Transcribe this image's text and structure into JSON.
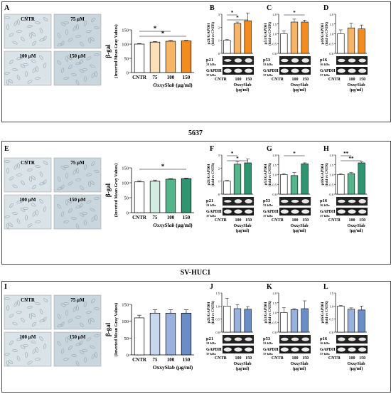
{
  "section_titles": [
    "5637",
    "SV-HUC1"
  ],
  "microscopy_labels": [
    "CNTR",
    "75 µM",
    "100 µM",
    "150 µM"
  ],
  "bgal_ylabel": "β-gal",
  "bgal_ylabel2": "(Inverted Mean Gray Values)",
  "xlabel_italic": "OxxySlab",
  "xlabel_unit": "(µg/ml)",
  "xlabel_plain": "OxxySlab (µg/ml)",
  "wb_xlabel": "OxxySlab",
  "wb_xlabel_unit": "(µg/ml)",
  "colors": {
    "cntr": "#ffffff",
    "set1": [
      "#fde0b9",
      "#f7b567",
      "#f28c20"
    ],
    "set2": [
      "#d1ece0",
      "#55b58a",
      "#2f9470"
    ],
    "set3": [
      "#c9d7ee",
      "#98b2dd",
      "#6a8cc7"
    ]
  },
  "chart_data": [
    {
      "panel": "A",
      "type": "bar",
      "categories": [
        "CNTR",
        "75",
        "100",
        "150"
      ],
      "values": [
        100,
        107,
        110,
        111
      ],
      "errors": [
        2,
        2,
        3,
        2
      ],
      "ylim": [
        0,
        150
      ],
      "yticks": [
        0,
        50,
        100,
        150
      ],
      "sig": [
        {
          "from": 0,
          "to": 2,
          "label": "*"
        },
        {
          "from": 0,
          "to": 3,
          "label": "*"
        }
      ]
    },
    {
      "panel": "B",
      "type": "bar",
      "ylabel": "p21/GAPDH",
      "ylabel2": "(fold vs CNTR)",
      "categories": [
        "CNTR",
        "100",
        "150"
      ],
      "values": [
        1.0,
        2.3,
        2.5
      ],
      "errors": [
        0.05,
        0.1,
        0.6
      ],
      "ylim": [
        0,
        3
      ],
      "yticks": [
        0,
        1,
        2,
        3
      ],
      "protein": "p21",
      "kda": "21 kDa",
      "gapdh": "GAPDH",
      "gapdh_kda": "37 kDa",
      "sig": [
        {
          "from": 0,
          "to": 1,
          "label": "*"
        },
        {
          "from": 0,
          "to": 2,
          "label": "*"
        }
      ]
    },
    {
      "panel": "C",
      "type": "bar",
      "ylabel": "p53/GAPDH",
      "ylabel2": "(fold vs CNTR)",
      "categories": [
        "CNTR",
        "100",
        "150"
      ],
      "values": [
        1.0,
        1.6,
        1.6
      ],
      "errors": [
        0.15,
        0.15,
        0.1
      ],
      "ylim": [
        0,
        2.0
      ],
      "yticks": [
        0.0,
        0.5,
        1.0,
        1.5,
        2.0
      ],
      "protein": "p53",
      "kda": "53 kDa",
      "gapdh": "GAPDH",
      "gapdh_kda": "37 kDa",
      "sig": [
        {
          "from": 0,
          "to": 2,
          "label": "*"
        }
      ]
    },
    {
      "panel": "D",
      "type": "bar",
      "ylabel": "p16/GAPDH",
      "ylabel2": "(fold vs CNTR)",
      "categories": [
        "CNTR",
        "100",
        "150"
      ],
      "values": [
        1.0,
        1.3,
        1.25
      ],
      "errors": [
        0.2,
        0.25,
        0.2
      ],
      "ylim": [
        0,
        2.0
      ],
      "yticks": [
        0.0,
        0.5,
        1.0,
        1.5,
        2.0
      ],
      "protein": "p16",
      "kda": "16 kDa",
      "gapdh": "GAPDH",
      "gapdh_kda": "37 kDa",
      "sig": []
    },
    {
      "panel": "E",
      "type": "bar",
      "categories": [
        "CNTR",
        "75",
        "100",
        "150"
      ],
      "values": [
        103,
        105,
        112,
        114
      ],
      "errors": [
        3,
        4,
        2,
        2
      ],
      "ylim": [
        0,
        150
      ],
      "yticks": [
        0,
        50,
        100,
        150
      ],
      "sig": [
        {
          "from": 0,
          "to": 3,
          "label": "*"
        }
      ]
    },
    {
      "panel": "F",
      "type": "bar",
      "ylabel": "p21/GAPDH",
      "ylabel2": "(fold vs CNTR)",
      "categories": [
        "CNTR",
        "100",
        "150"
      ],
      "values": [
        1.0,
        2.3,
        2.4
      ],
      "errors": [
        0.05,
        0.2,
        0.3
      ],
      "ylim": [
        0,
        3
      ],
      "yticks": [
        0,
        1,
        2,
        3
      ],
      "protein": "p21",
      "kda": "21 kDa",
      "gapdh": "GAPDH",
      "gapdh_kda": "37 kDa",
      "sig": [
        {
          "from": 0,
          "to": 1,
          "label": "*"
        },
        {
          "from": 0,
          "to": 2,
          "label": "*"
        }
      ]
    },
    {
      "panel": "G",
      "type": "bar",
      "ylabel": "p53/GAPDH",
      "ylabel2": "(fold vs CNTR)",
      "categories": [
        "CNTR",
        "100",
        "150"
      ],
      "values": [
        1.0,
        0.95,
        1.55
      ],
      "errors": [
        0.05,
        0.15,
        0.05
      ],
      "ylim": [
        0,
        2.0
      ],
      "yticks": [
        0.0,
        0.5,
        1.0,
        1.5,
        2.0
      ],
      "protein": "p53",
      "kda": "53 kDa",
      "gapdh": "GAPDH",
      "gapdh_kda": "37 kDa",
      "sig": [
        {
          "from": 0,
          "to": 2,
          "label": "*"
        }
      ]
    },
    {
      "panel": "H",
      "type": "bar",
      "ylabel": "p16/GAPDH",
      "ylabel2": "(fold vs CNTR)",
      "categories": [
        "CNTR",
        "100",
        "150"
      ],
      "values": [
        1.0,
        1.05,
        1.6
      ],
      "errors": [
        0.05,
        0.05,
        0.05
      ],
      "ylim": [
        0,
        2.0
      ],
      "yticks": [
        0.0,
        0.5,
        1.0,
        1.5,
        2.0
      ],
      "protein": "p16",
      "kda": "16 kDa",
      "gapdh": "GAPDH",
      "gapdh_kda": "37 kDa",
      "sig": [
        {
          "from": 0,
          "to": 1,
          "label": "**"
        },
        {
          "from": 0,
          "to": 2,
          "label": "**"
        }
      ]
    },
    {
      "panel": "I",
      "type": "bar",
      "categories": [
        "CNTR",
        "75",
        "100",
        "150"
      ],
      "values": [
        110,
        124,
        124,
        124
      ],
      "errors": [
        8,
        10,
        10,
        10
      ],
      "ylim": [
        0,
        150
      ],
      "yticks": [
        0,
        50,
        100,
        150
      ],
      "sig": []
    },
    {
      "panel": "J",
      "type": "bar",
      "ylabel": "p21/GAPDH",
      "ylabel2": "(fold vs CNTR)",
      "categories": [
        "CNTR",
        "100",
        "150"
      ],
      "values": [
        1.0,
        0.9,
        0.88
      ],
      "errors": [
        0.3,
        0.15,
        0.1
      ],
      "ylim": [
        0,
        1.5
      ],
      "yticks": [
        0.0,
        0.5,
        1.0,
        1.5
      ],
      "protein": "p21",
      "kda": "21 kDa",
      "gapdh": "GAPDH",
      "gapdh_kda": "37 kDa",
      "sig": []
    },
    {
      "panel": "K",
      "type": "bar",
      "ylabel": "p53/GAPDH",
      "ylabel2": "(fold vs CNTR)",
      "categories": [
        "CNTR",
        "100",
        "150"
      ],
      "values": [
        1.0,
        1.15,
        1.2
      ],
      "errors": [
        0.25,
        0.05,
        0.4
      ],
      "ylim": [
        0,
        2.0
      ],
      "yticks": [
        0.0,
        0.5,
        1.0,
        1.5,
        2.0
      ],
      "protein": "p53",
      "kda": "53 kDa",
      "gapdh": "GAPDH",
      "gapdh_kda": "37 kDa",
      "sig": []
    },
    {
      "panel": "L",
      "type": "bar",
      "ylabel": "p16/GAPDH",
      "ylabel2": "(fold vs CNTR)",
      "categories": [
        "CNTR",
        "100",
        "150"
      ],
      "values": [
        1.0,
        0.88,
        0.85
      ],
      "errors": [
        0.02,
        0.05,
        0.15
      ],
      "ylim": [
        0,
        1.5
      ],
      "yticks": [
        0.0,
        0.5,
        1.0,
        1.5
      ],
      "protein": "p16",
      "kda": "16 kDa",
      "gapdh": "GAPDH",
      "gapdh_kda": "37 kDa",
      "sig": []
    }
  ]
}
